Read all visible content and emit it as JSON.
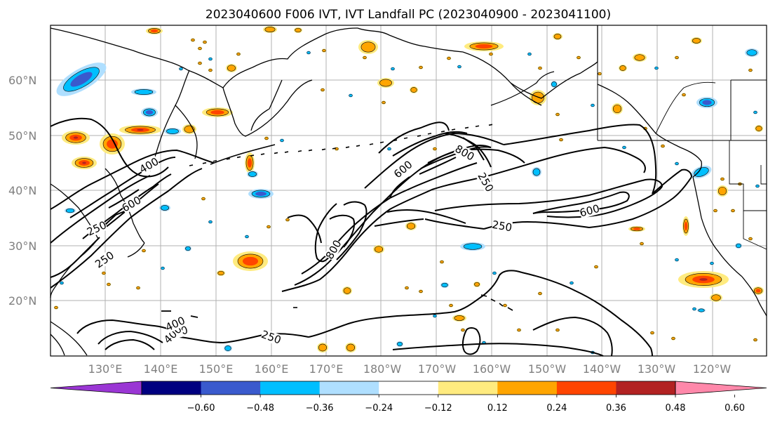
{
  "title": "2023040600 F006 IVT, IVT Landfall PC (2023040900 - 2023041100)",
  "map": {
    "lat_labels": [
      "60°N",
      "50°N",
      "40°N",
      "30°N",
      "20°N"
    ],
    "lon_labels": [
      "130°E",
      "140°E",
      "150°E",
      "160°E",
      "170°E",
      "180°W",
      "170°W",
      "160°W",
      "150°W",
      "140°W",
      "130°W",
      "120°W"
    ],
    "contour_labels": [
      "400",
      "600",
      "250",
      "250",
      "400",
      "800",
      "600",
      "800",
      "250",
      "600",
      "250",
      "400",
      "250",
      "400"
    ],
    "contour_levels": [
      250,
      400,
      600,
      800
    ],
    "contour_color": "#000000",
    "land_color": "#000000",
    "grid_color": "#b0b0b0"
  },
  "colorbar": {
    "ticks": [
      "−0.60",
      "−0.48",
      "−0.36",
      "−0.24",
      "−0.12",
      "0.12",
      "0.24",
      "0.36",
      "0.48",
      "0.60"
    ],
    "under_color": "#9932cc",
    "over_color": "#ff88aa",
    "colors": [
      "#9a36d4",
      "#000080",
      "#3a5acd",
      "#00bfff",
      "#afdfff",
      "#ffffff",
      "#ffeb7f",
      "#ffa500",
      "#ff4500",
      "#b22222",
      "#ff88aa"
    ]
  },
  "shading_colors": {
    "neg1": "#afdfff",
    "neg2": "#00bfff",
    "neg3": "#3a5acd",
    "neg4": "#9a36d4",
    "pos1": "#ffeb7f",
    "pos2": "#ffa500",
    "pos3": "#ff4500",
    "pos4": "#b22222"
  }
}
